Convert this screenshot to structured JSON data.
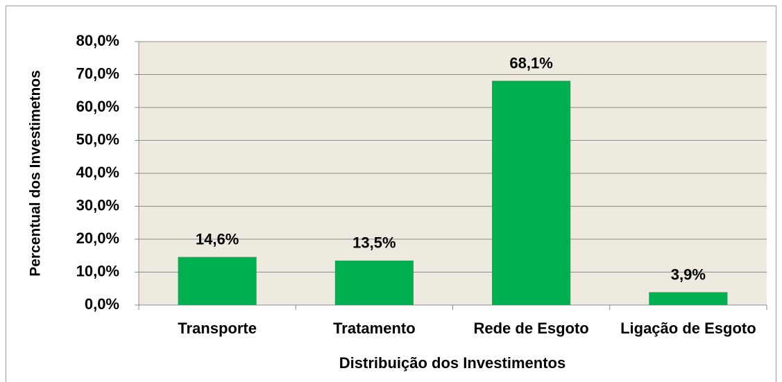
{
  "chart_data": {
    "type": "bar",
    "categories": [
      "Transporte",
      "Tratamento",
      "Rede de Esgoto",
      "Ligação de Esgoto"
    ],
    "values": [
      14.6,
      13.5,
      68.1,
      3.9
    ],
    "value_labels": [
      "14,6%",
      "13,5%",
      "68,1%",
      "3,9%"
    ],
    "color": "#00b050",
    "xlabel": "Distribuição dos Investimentos",
    "ylabel": "Percentual dos Investimetnos",
    "ylim": [
      0,
      80
    ],
    "yticks": [
      {
        "value": 0,
        "label": "0,0%"
      },
      {
        "value": 10,
        "label": "10,0%"
      },
      {
        "value": 20,
        "label": "20,0%"
      },
      {
        "value": 30,
        "label": "30,0%"
      },
      {
        "value": 40,
        "label": "40,0%"
      },
      {
        "value": 50,
        "label": "50,0%"
      },
      {
        "value": 60,
        "label": "60,0%"
      },
      {
        "value": 70,
        "label": "70,0%"
      },
      {
        "value": 80,
        "label": "80,0%"
      }
    ],
    "grid": true
  }
}
